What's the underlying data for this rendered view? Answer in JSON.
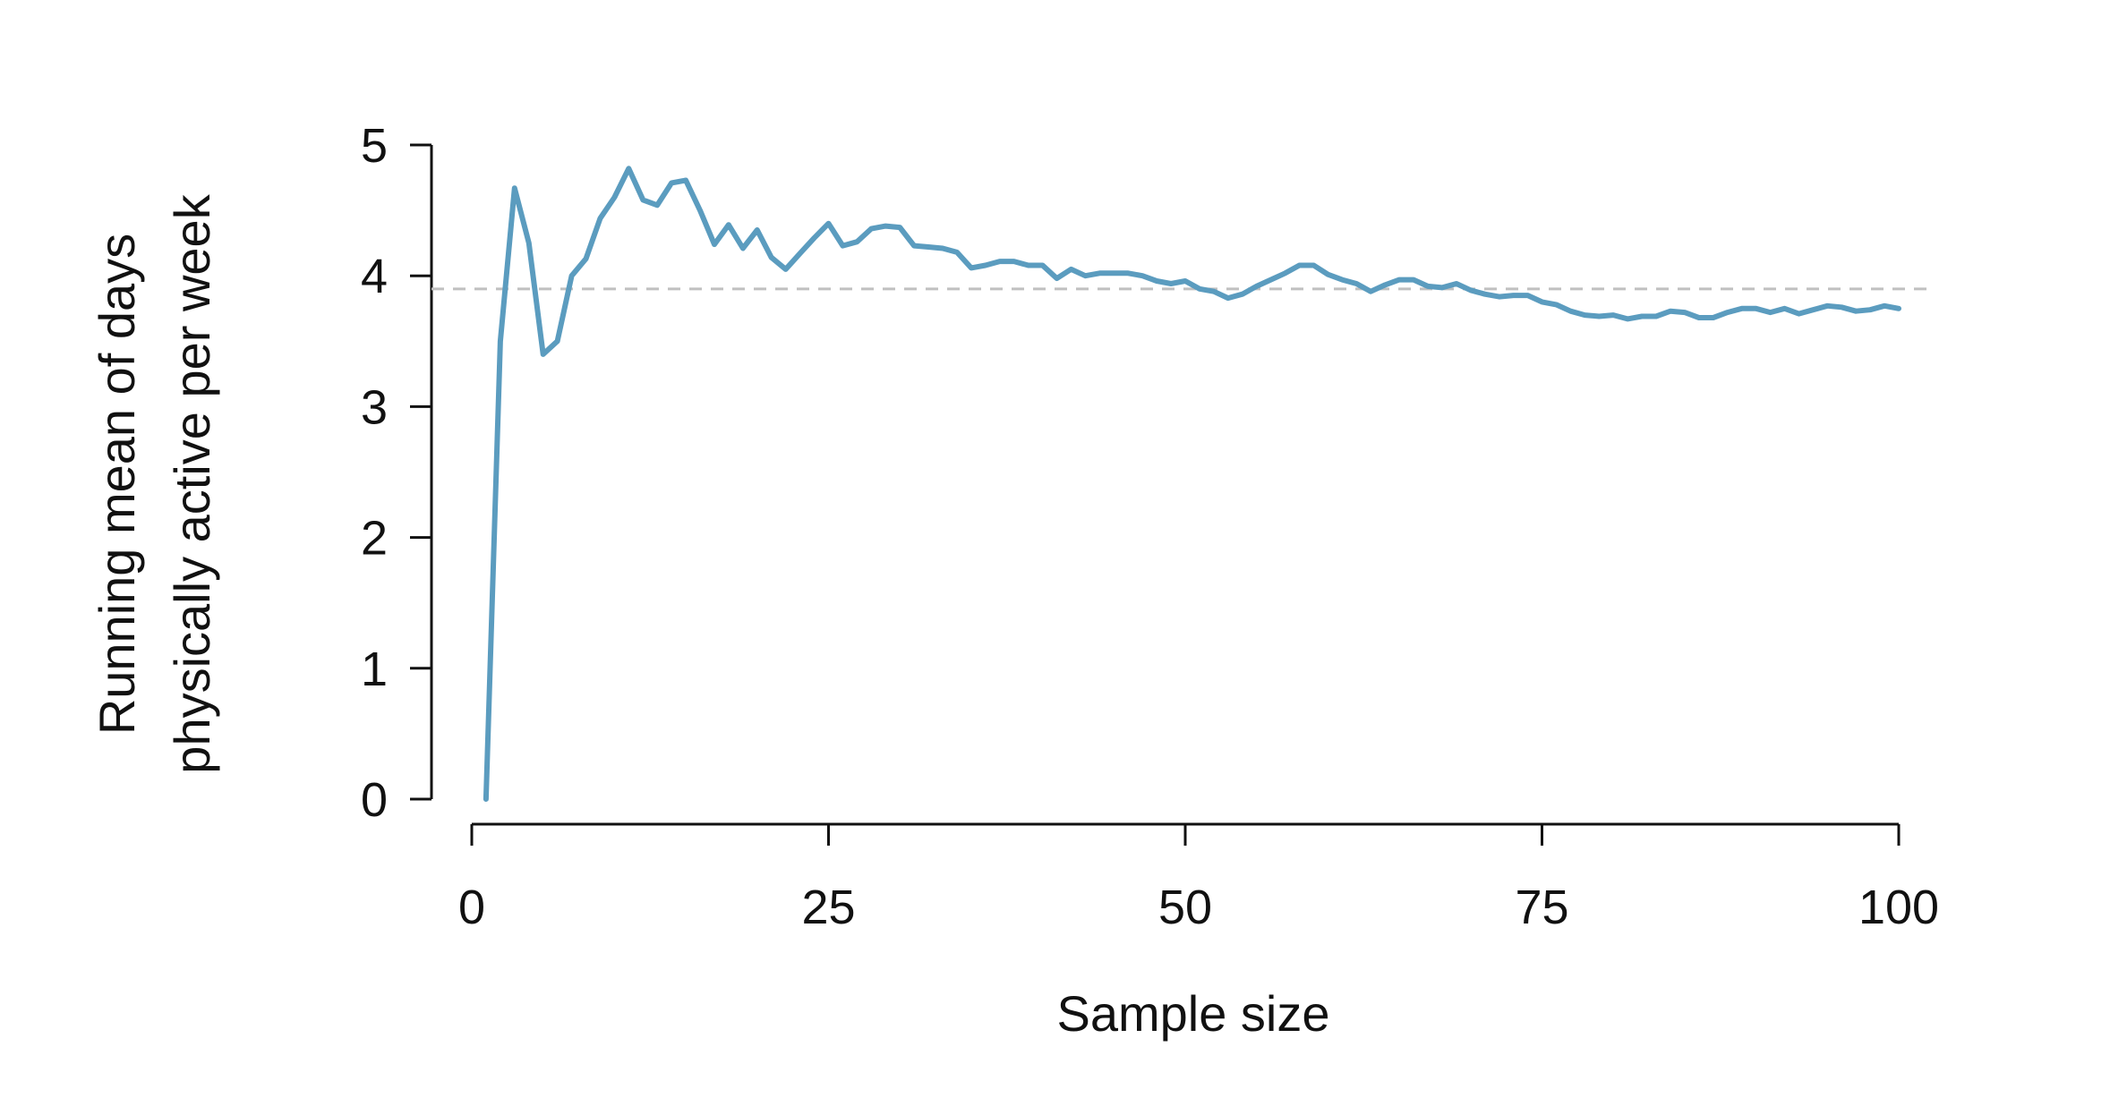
{
  "chart_data": {
    "type": "line",
    "title": "",
    "xlabel": "Sample size",
    "ylabel_lines": [
      "Running mean of days",
      "physically active per week"
    ],
    "xlim": [
      0,
      100
    ],
    "ylim": [
      0,
      5
    ],
    "x_ticks": [
      0,
      25,
      50,
      75,
      100
    ],
    "x_tick_labels": [
      "0",
      "25",
      "50",
      "75",
      "100"
    ],
    "y_ticks": [
      0,
      1,
      2,
      3,
      4,
      5
    ],
    "y_tick_labels": [
      "0",
      "1",
      "2",
      "3",
      "4",
      "5"
    ],
    "grid": false,
    "colors": {
      "series": "#5b9cbf",
      "reference": "#c0c0c0"
    },
    "reference_line": {
      "y": 3.9,
      "style": "dashed"
    },
    "series": [
      {
        "x": [
          1,
          2,
          3,
          4,
          5,
          6,
          7,
          8,
          9,
          10,
          11,
          12,
          13,
          14,
          15,
          16,
          17,
          18,
          19,
          20,
          21,
          22,
          23,
          24,
          25,
          26,
          27,
          28,
          29,
          30,
          31,
          32,
          33,
          34,
          35,
          36,
          37,
          38,
          39,
          40,
          41,
          42,
          43,
          44,
          45,
          46,
          47,
          48,
          49,
          50,
          51,
          52,
          53,
          54,
          55,
          56,
          57,
          58,
          59,
          60,
          61,
          62,
          63,
          64,
          65,
          66,
          67,
          68,
          69,
          70,
          71,
          72,
          73,
          74,
          75,
          76,
          77,
          78,
          79,
          80,
          81,
          82,
          83,
          84,
          85,
          86,
          87,
          88,
          89,
          90,
          91,
          92,
          93,
          94,
          95,
          96,
          97,
          98,
          99,
          100
        ],
        "y": [
          0.0,
          3.5,
          4.67,
          4.25,
          3.4,
          3.5,
          4.0,
          4.13,
          4.44,
          4.6,
          4.82,
          4.58,
          4.54,
          4.71,
          4.73,
          4.5,
          4.24,
          4.39,
          4.21,
          4.35,
          4.14,
          4.05,
          4.17,
          4.29,
          4.4,
          4.23,
          4.26,
          4.36,
          4.38,
          4.37,
          4.23,
          4.22,
          4.21,
          4.18,
          4.06,
          4.08,
          4.11,
          4.11,
          4.08,
          4.08,
          3.98,
          4.05,
          4.0,
          4.02,
          4.02,
          4.02,
          4.0,
          3.96,
          3.94,
          3.96,
          3.9,
          3.88,
          3.83,
          3.86,
          3.92,
          3.97,
          4.02,
          4.08,
          4.08,
          4.01,
          3.97,
          3.94,
          3.88,
          3.93,
          3.97,
          3.97,
          3.92,
          3.91,
          3.94,
          3.89,
          3.86,
          3.84,
          3.85,
          3.85,
          3.8,
          3.78,
          3.73,
          3.7,
          3.69,
          3.7,
          3.67,
          3.69,
          3.69,
          3.73,
          3.72,
          3.68,
          3.68,
          3.72,
          3.75,
          3.75,
          3.72,
          3.75,
          3.71,
          3.74,
          3.77,
          3.76,
          3.73,
          3.74,
          3.77,
          3.75
        ]
      }
    ]
  }
}
